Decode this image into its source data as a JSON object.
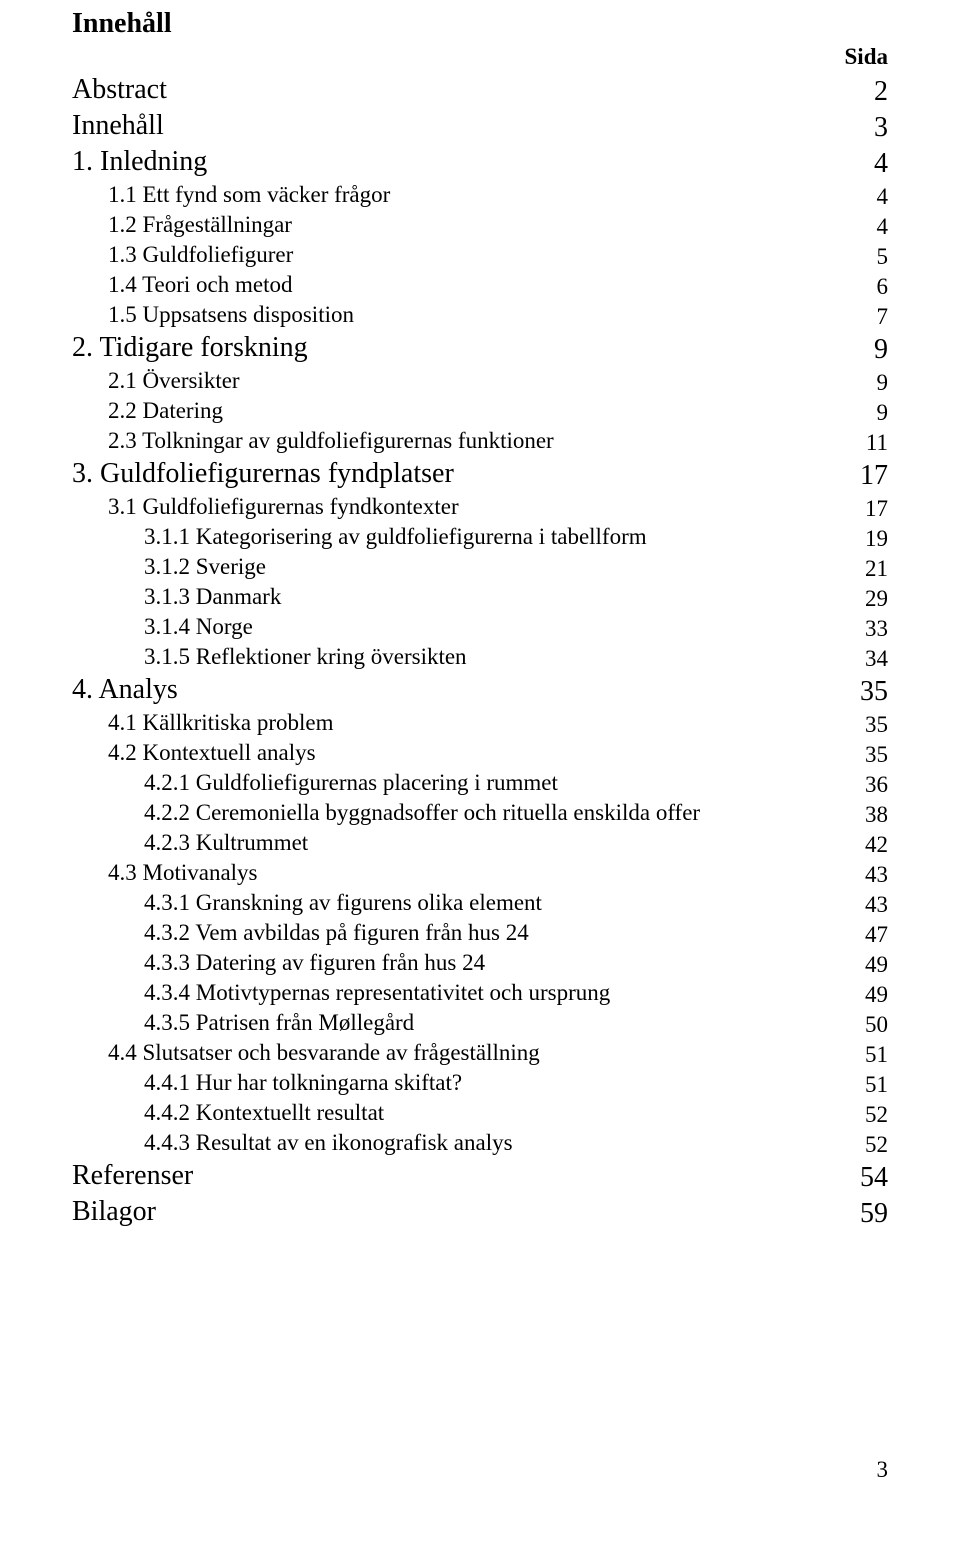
{
  "title": "Innehåll",
  "page_header": "Sida",
  "footer_page_number": "3",
  "colors": {
    "text": "#000000",
    "background": "#ffffff"
  },
  "typography": {
    "font_family": "Times New Roman",
    "title_size": 28,
    "body_size": 23,
    "sub_size": 23
  },
  "entries": [
    {
      "label": "Abstract",
      "page": "2",
      "level": 0
    },
    {
      "label": "Innehåll",
      "page": "3",
      "level": 0
    },
    {
      "label": "1. Inledning",
      "page": "4",
      "level": 0
    },
    {
      "label": "1.1 Ett fynd som väcker frågor",
      "page": "4",
      "level": 2
    },
    {
      "label": "1.2 Frågeställningar",
      "page": "4",
      "level": 2
    },
    {
      "label": "1.3 Guldfoliefigurer",
      "page": "5",
      "level": 2
    },
    {
      "label": "1.4 Teori och metod",
      "page": "6",
      "level": 2
    },
    {
      "label": "1.5 Uppsatsens disposition",
      "page": "7",
      "level": 2
    },
    {
      "label": "2. Tidigare forskning",
      "page": "9",
      "level": 0
    },
    {
      "label": "2.1 Översikter",
      "page": "9",
      "level": 2
    },
    {
      "label": "2.2 Datering",
      "page": "9",
      "level": 2
    },
    {
      "label": "2.3 Tolkningar av guldfoliefigurernas funktioner",
      "page": "11",
      "level": 2
    },
    {
      "label": "3. Guldfoliefigurernas fyndplatser",
      "page": "17",
      "level": 0
    },
    {
      "label": "3.1 Guldfoliefigurernas fyndkontexter",
      "page": "17",
      "level": 2
    },
    {
      "label": "3.1.1 Kategorisering av guldfoliefigurerna i tabellform",
      "page": "19",
      "level": 3
    },
    {
      "label": "3.1.2 Sverige",
      "page": "21",
      "level": 3
    },
    {
      "label": "3.1.3 Danmark",
      "page": "29",
      "level": 3
    },
    {
      "label": "3.1.4 Norge",
      "page": "33",
      "level": 3
    },
    {
      "label": "3.1.5 Reflektioner kring översikten",
      "page": "34",
      "level": 3
    },
    {
      "label": "4. Analys",
      "page": "35",
      "level": 0
    },
    {
      "label": "4.1 Källkritiska problem",
      "page": "35",
      "level": 2
    },
    {
      "label": "4.2 Kontextuell analys",
      "page": "35",
      "level": 2
    },
    {
      "label": "4.2.1 Guldfoliefigurernas placering i rummet",
      "page": "36",
      "level": 3
    },
    {
      "label": "4.2.2 Ceremoniella byggnadsoffer och rituella enskilda offer",
      "page": "38",
      "level": 3
    },
    {
      "label": "4.2.3 Kultrummet",
      "page": "42",
      "level": 3
    },
    {
      "label": "4.3 Motivanalys",
      "page": "43",
      "level": 2
    },
    {
      "label": "4.3.1 Granskning av figurens olika element",
      "page": "43",
      "level": 3
    },
    {
      "label": "4.3.2 Vem avbildas på figuren från hus 24",
      "page": "47",
      "level": 3
    },
    {
      "label": "4.3.3 Datering av figuren från hus 24",
      "page": "49",
      "level": 3
    },
    {
      "label": "4.3.4 Motivtypernas representativitet och ursprung",
      "page": "49",
      "level": 3
    },
    {
      "label": "4.3.5 Patrisen från Møllegård",
      "page": "50",
      "level": 3
    },
    {
      "label": "4.4 Slutsatser och besvarande av frågeställning",
      "page": "51",
      "level": 2
    },
    {
      "label": "4.4.1 Hur har tolkningarna skiftat?",
      "page": "51",
      "level": 3
    },
    {
      "label": "4.4.2 Kontextuellt resultat",
      "page": "52",
      "level": 3
    },
    {
      "label": "4.4.3 Resultat av en ikonografisk analys",
      "page": "52",
      "level": 3
    },
    {
      "label": "Referenser",
      "page": "54",
      "level": 0
    },
    {
      "label": "Bilagor",
      "page": "59",
      "level": 0
    }
  ]
}
